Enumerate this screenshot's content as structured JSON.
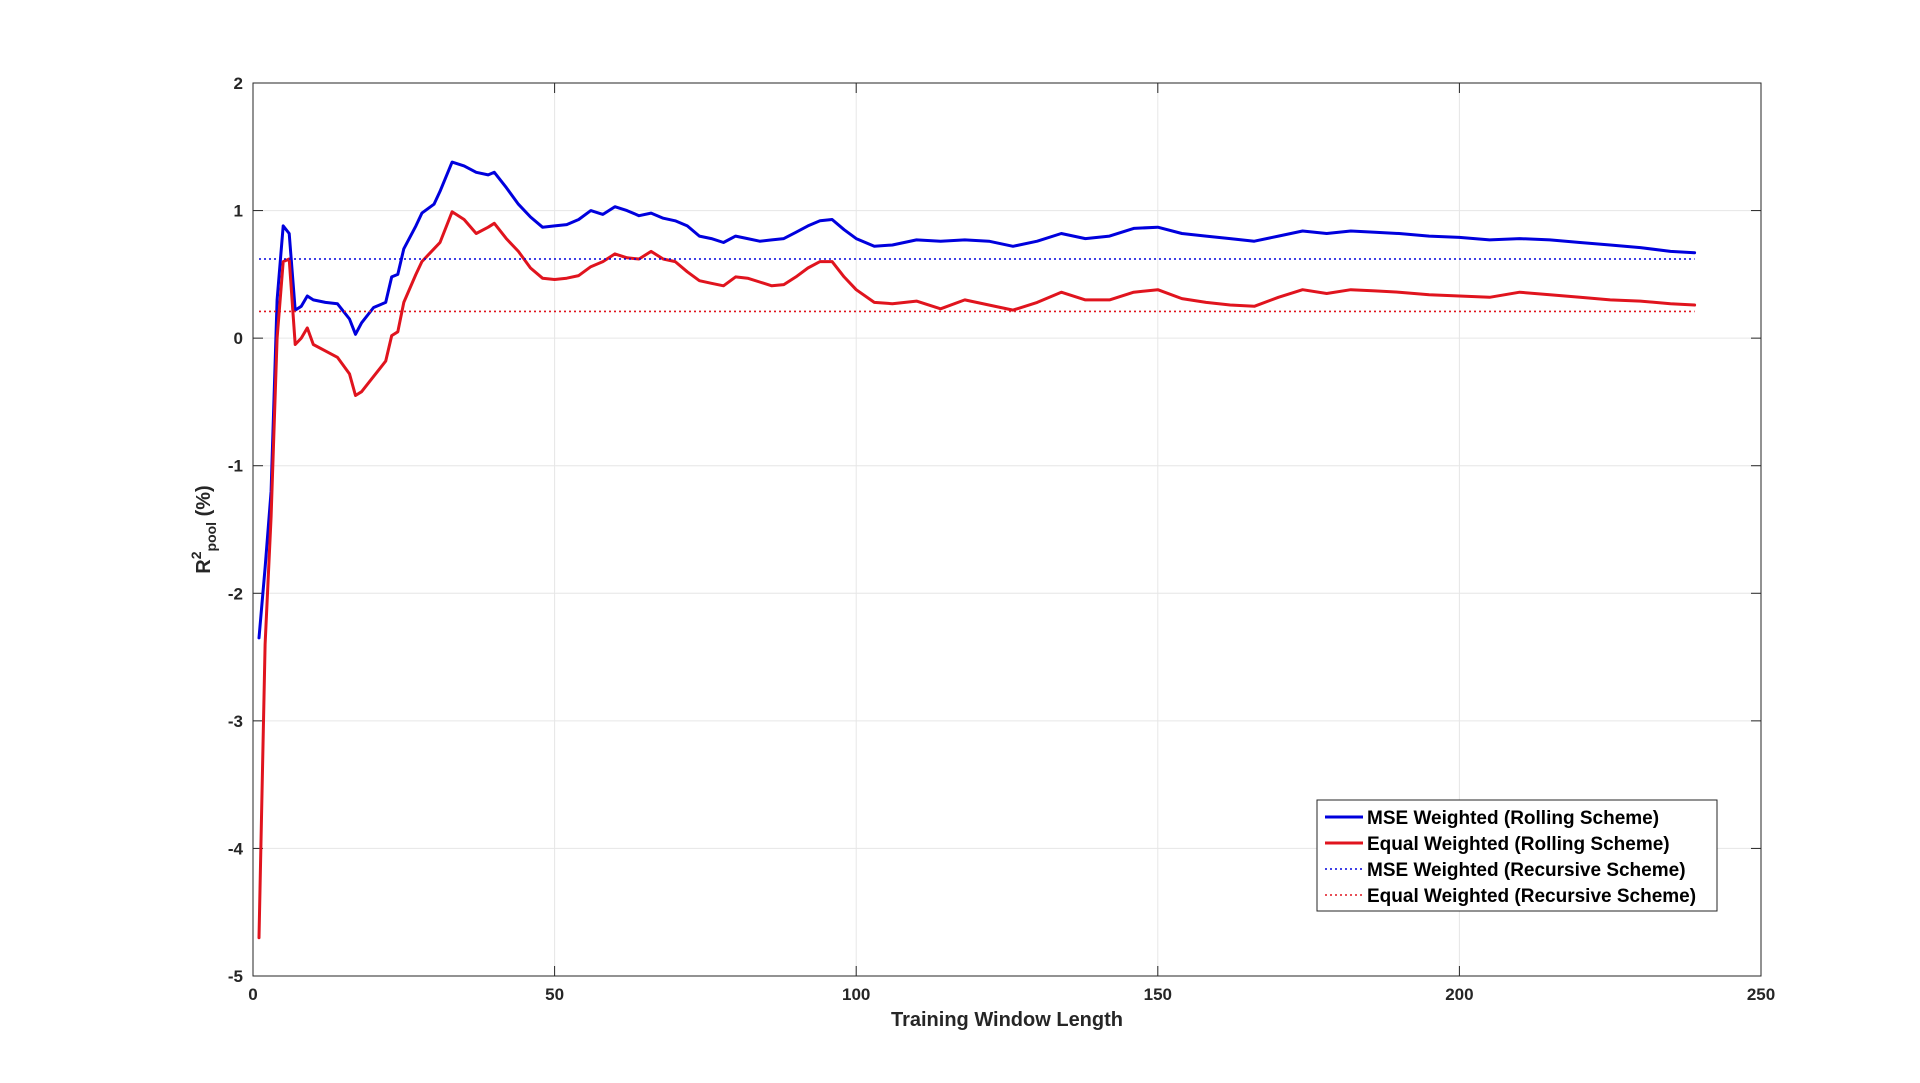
{
  "chart_data": {
    "type": "line",
    "xlabel": "Training Window Length",
    "ylabel": "R",
    "ylabel_superscript": "2",
    "ylabel_subscript": "pool",
    "ylabel_unit": " (%)",
    "xlim": [
      0,
      250
    ],
    "ylim": [
      -5,
      2
    ],
    "xticks": [
      0,
      50,
      100,
      150,
      200,
      250
    ],
    "yticks": [
      2,
      1,
      0,
      -1,
      -2,
      -3,
      -4,
      -5
    ],
    "grid": true,
    "legend_position": "lower-right",
    "series": [
      {
        "name": "MSE Weighted (Rolling Scheme)",
        "color": "#0000dd",
        "style": "solid",
        "x": [
          1,
          2,
          3,
          4,
          5,
          6,
          7,
          8,
          9,
          10,
          12,
          14,
          16,
          17,
          18,
          20,
          22,
          23,
          24,
          25,
          27,
          28,
          30,
          31,
          33,
          35,
          37,
          39,
          40,
          42,
          44,
          46,
          48,
          50,
          52,
          54,
          56,
          58,
          60,
          62,
          64,
          66,
          68,
          70,
          72,
          74,
          76,
          78,
          80,
          82,
          84,
          86,
          88,
          90,
          92,
          94,
          96,
          98,
          100,
          103,
          106,
          110,
          114,
          118,
          122,
          126,
          130,
          134,
          138,
          142,
          146,
          150,
          154,
          158,
          162,
          166,
          170,
          174,
          178,
          182,
          186,
          190,
          195,
          200,
          205,
          210,
          215,
          220,
          225,
          230,
          235,
          239
        ],
        "y": [
          -2.35,
          -1.8,
          -1.2,
          0.3,
          0.88,
          0.82,
          0.22,
          0.25,
          0.33,
          0.3,
          0.28,
          0.27,
          0.15,
          0.03,
          0.12,
          0.24,
          0.28,
          0.48,
          0.5,
          0.7,
          0.88,
          0.98,
          1.05,
          1.15,
          1.38,
          1.35,
          1.3,
          1.28,
          1.3,
          1.18,
          1.05,
          0.95,
          0.87,
          0.88,
          0.89,
          0.93,
          1.0,
          0.97,
          1.03,
          1.0,
          0.96,
          0.98,
          0.94,
          0.92,
          0.88,
          0.8,
          0.78,
          0.75,
          0.8,
          0.78,
          0.76,
          0.77,
          0.78,
          0.83,
          0.88,
          0.92,
          0.93,
          0.85,
          0.78,
          0.72,
          0.73,
          0.77,
          0.76,
          0.77,
          0.76,
          0.72,
          0.76,
          0.82,
          0.78,
          0.8,
          0.86,
          0.87,
          0.82,
          0.8,
          0.78,
          0.76,
          0.8,
          0.84,
          0.82,
          0.84,
          0.83,
          0.82,
          0.8,
          0.79,
          0.77,
          0.78,
          0.77,
          0.75,
          0.73,
          0.71,
          0.68,
          0.67
        ]
      },
      {
        "name": "Equal Weighted (Rolling Scheme)",
        "color": "#e0141e",
        "style": "solid",
        "x": [
          1,
          2,
          3,
          4,
          5,
          6,
          7,
          8,
          9,
          10,
          12,
          14,
          16,
          17,
          18,
          20,
          22,
          23,
          24,
          25,
          27,
          28,
          30,
          31,
          33,
          35,
          37,
          39,
          40,
          42,
          44,
          46,
          48,
          50,
          52,
          54,
          56,
          58,
          60,
          62,
          64,
          66,
          68,
          70,
          72,
          74,
          76,
          78,
          80,
          82,
          84,
          86,
          88,
          90,
          92,
          94,
          96,
          98,
          100,
          103,
          106,
          110,
          114,
          118,
          122,
          126,
          130,
          134,
          138,
          142,
          146,
          150,
          154,
          158,
          162,
          166,
          170,
          174,
          178,
          182,
          186,
          190,
          195,
          200,
          205,
          210,
          215,
          220,
          225,
          230,
          235,
          239
        ],
        "y": [
          -4.7,
          -2.4,
          -1.4,
          0.0,
          0.6,
          0.62,
          -0.05,
          0.0,
          0.08,
          -0.05,
          -0.1,
          -0.15,
          -0.28,
          -0.45,
          -0.42,
          -0.3,
          -0.18,
          0.02,
          0.05,
          0.28,
          0.5,
          0.6,
          0.7,
          0.75,
          0.99,
          0.93,
          0.82,
          0.87,
          0.9,
          0.78,
          0.68,
          0.55,
          0.47,
          0.46,
          0.47,
          0.49,
          0.56,
          0.6,
          0.66,
          0.63,
          0.62,
          0.68,
          0.62,
          0.6,
          0.52,
          0.45,
          0.43,
          0.41,
          0.48,
          0.47,
          0.44,
          0.41,
          0.42,
          0.48,
          0.55,
          0.6,
          0.6,
          0.48,
          0.38,
          0.28,
          0.27,
          0.29,
          0.23,
          0.3,
          0.26,
          0.22,
          0.28,
          0.36,
          0.3,
          0.3,
          0.36,
          0.38,
          0.31,
          0.28,
          0.26,
          0.25,
          0.32,
          0.38,
          0.35,
          0.38,
          0.37,
          0.36,
          0.34,
          0.33,
          0.32,
          0.36,
          0.34,
          0.32,
          0.3,
          0.29,
          0.27,
          0.26
        ]
      },
      {
        "name": "MSE Weighted (Recursive Scheme)",
        "color": "#0000dd",
        "style": "dotted",
        "x": [
          1,
          239
        ],
        "y": [
          0.62,
          0.62
        ]
      },
      {
        "name": "Equal Weighted (Recursive Scheme)",
        "color": "#e0141e",
        "style": "dotted",
        "x": [
          1,
          239
        ],
        "y": [
          0.21,
          0.21
        ]
      }
    ]
  }
}
